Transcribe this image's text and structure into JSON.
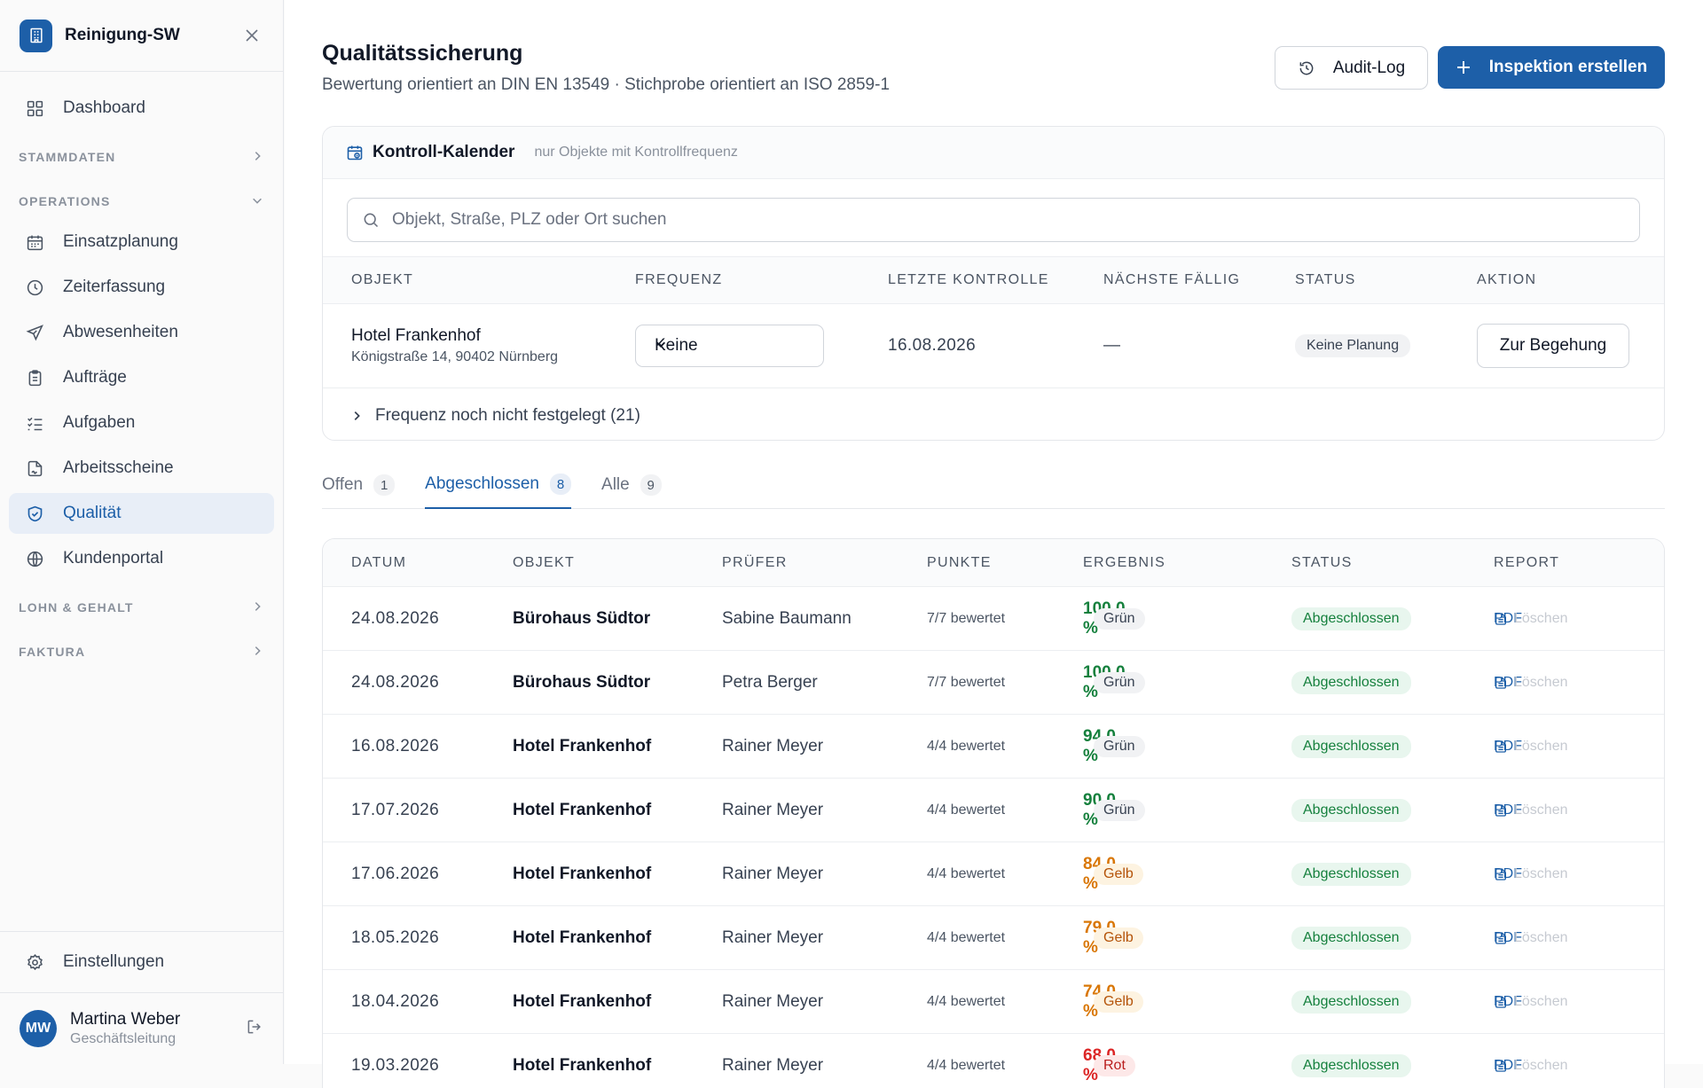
{
  "app": {
    "name": "Reinigung-SW"
  },
  "sidebar": {
    "dashboard": "Dashboard",
    "group_stammdaten": "STAMMDATEN",
    "group_operations": "OPERATIONS",
    "items": [
      {
        "label": "Einsatzplanung",
        "icon": "calendar-icon"
      },
      {
        "label": "Zeiterfassung",
        "icon": "clock-icon"
      },
      {
        "label": "Abwesenheiten",
        "icon": "plane-icon"
      },
      {
        "label": "Aufträge",
        "icon": "clipboard-icon"
      },
      {
        "label": "Aufgaben",
        "icon": "checklist-icon"
      },
      {
        "label": "Arbeitsscheine",
        "icon": "document-sign-icon"
      },
      {
        "label": "Qualität",
        "icon": "shield-check-icon",
        "active": true
      },
      {
        "label": "Kundenportal",
        "icon": "globe-icon"
      }
    ],
    "group_lohn": "LOHN & GEHALT",
    "group_faktura": "FAKTURA",
    "settings": "Einstellungen",
    "user": {
      "initials": "MW",
      "name": "Martina Weber",
      "role": "Geschäftsleitung"
    }
  },
  "header": {
    "title": "Qualitätssicherung",
    "subtitle": "Bewertung orientiert an DIN EN 13549 · Stichprobe orientiert an ISO 2859-1",
    "audit_label": "Audit-Log",
    "create_label": "Inspektion erstellen"
  },
  "calendar": {
    "title": "Kontroll-Kalender",
    "hint": "nur Objekte mit Kontrollfrequenz",
    "search_placeholder": "Objekt, Straße, PLZ oder Ort suchen",
    "columns": [
      "OBJEKT",
      "FREQUENZ",
      "LETZTE KONTROLLE",
      "NÄCHSTE FÄLLIG",
      "STATUS",
      "AKTION"
    ],
    "row": {
      "name": "Hotel Frankenhof",
      "address": "Königstraße 14, 90402 Nürnberg",
      "frequency": "Keine",
      "last": "16.08.2026",
      "next": "—",
      "status": "Keine Planung",
      "action": "Zur Begehung"
    },
    "expander": "Frequenz noch nicht festgelegt (21)"
  },
  "tabs": [
    {
      "label": "Offen",
      "count": "1"
    },
    {
      "label": "Abgeschlossen",
      "count": "8",
      "active": true
    },
    {
      "label": "Alle",
      "count": "9"
    }
  ],
  "inspections": {
    "columns": [
      "DATUM",
      "OBJEKT",
      "PRÜFER",
      "PUNKTE",
      "ERGEBNIS",
      "STATUS",
      "REPORT"
    ],
    "pdf_label": "PDF",
    "delete_label": "Löschen",
    "rows": [
      {
        "date": "24.08.2026",
        "object": "Bürohaus Südtor",
        "inspector": "Sabine Baumann",
        "points": "7/7 bewertet",
        "result": "100,0 %",
        "light": "Grün",
        "status": "Abgeschlossen"
      },
      {
        "date": "24.08.2026",
        "object": "Bürohaus Südtor",
        "inspector": "Petra Berger",
        "points": "7/7 bewertet",
        "result": "100,0 %",
        "light": "Grün",
        "status": "Abgeschlossen"
      },
      {
        "date": "16.08.2026",
        "object": "Hotel Frankenhof",
        "inspector": "Rainer Meyer",
        "points": "4/4 bewertet",
        "result": "94,0 %",
        "light": "Grün",
        "status": "Abgeschlossen"
      },
      {
        "date": "17.07.2026",
        "object": "Hotel Frankenhof",
        "inspector": "Rainer Meyer",
        "points": "4/4 bewertet",
        "result": "90,0 %",
        "light": "Grün",
        "status": "Abgeschlossen"
      },
      {
        "date": "17.06.2026",
        "object": "Hotel Frankenhof",
        "inspector": "Rainer Meyer",
        "points": "4/4 bewertet",
        "result": "84,0 %",
        "light": "Gelb",
        "status": "Abgeschlossen"
      },
      {
        "date": "18.05.2026",
        "object": "Hotel Frankenhof",
        "inspector": "Rainer Meyer",
        "points": "4/4 bewertet",
        "result": "79,0 %",
        "light": "Gelb",
        "status": "Abgeschlossen"
      },
      {
        "date": "18.04.2026",
        "object": "Hotel Frankenhof",
        "inspector": "Rainer Meyer",
        "points": "4/4 bewertet",
        "result": "74,0 %",
        "light": "Gelb",
        "status": "Abgeschlossen"
      },
      {
        "date": "19.03.2026",
        "object": "Hotel Frankenhof",
        "inspector": "Rainer Meyer",
        "points": "4/4 bewertet",
        "result": "68,0 %",
        "light": "Rot",
        "status": "Abgeschlossen"
      }
    ]
  },
  "colors": {
    "accent": "#1d5fa8",
    "green": "#15803d",
    "amber": "#d97706",
    "red": "#dc2626"
  }
}
